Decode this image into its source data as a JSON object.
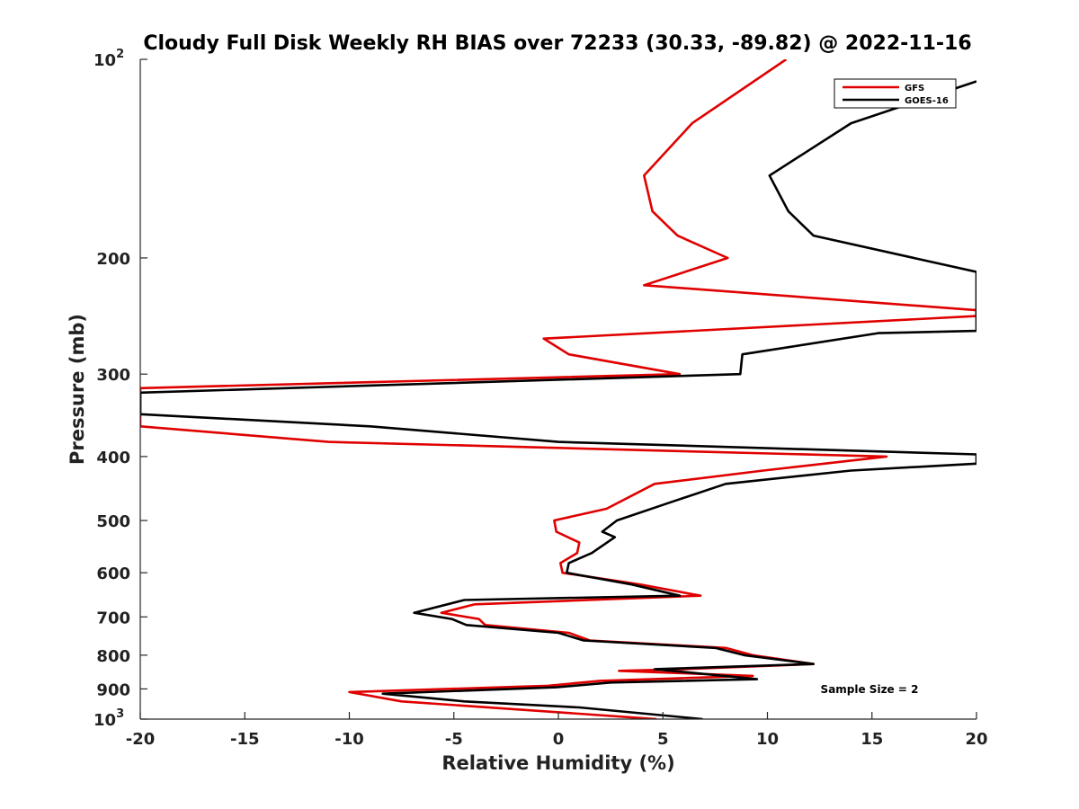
{
  "chart_data": {
    "type": "line",
    "title": "Cloudy Full Disk Weekly RH BIAS over 72233 (30.33, -89.82) @ 2022-11-16",
    "xlabel": "Relative Humidity (%)",
    "ylabel": "Pressure (mb)",
    "xlim": [
      -20,
      20
    ],
    "ylim": [
      100,
      1000
    ],
    "yscale": "log",
    "y_reversed": true,
    "x_ticks": [
      -20,
      -15,
      -10,
      -5,
      0,
      5,
      10,
      15,
      20
    ],
    "y_ticks": [
      {
        "value": 100,
        "label": "10",
        "exp": "2"
      },
      {
        "value": 200,
        "label": "200",
        "exp": ""
      },
      {
        "value": 300,
        "label": "300",
        "exp": ""
      },
      {
        "value": 400,
        "label": "400",
        "exp": ""
      },
      {
        "value": 500,
        "label": "500",
        "exp": ""
      },
      {
        "value": 600,
        "label": "600",
        "exp": ""
      },
      {
        "value": 700,
        "label": "700",
        "exp": ""
      },
      {
        "value": 800,
        "label": "800",
        "exp": ""
      },
      {
        "value": 900,
        "label": "900",
        "exp": ""
      },
      {
        "value": 1000,
        "label": "10",
        "exp": "3"
      }
    ],
    "legend_position": "top-right",
    "annotation": "Sample Size = 2",
    "series": [
      {
        "name": "GFS",
        "color": "#e00000",
        "points": [
          [
            10.9,
            100
          ],
          [
            6.4,
            125
          ],
          [
            4.1,
            150
          ],
          [
            4.5,
            170
          ],
          [
            5.7,
            185
          ],
          [
            8.1,
            200
          ],
          [
            4.1,
            220
          ],
          [
            20.5,
            240
          ],
          [
            20.5,
            245
          ],
          [
            -0.7,
            265
          ],
          [
            0.5,
            280
          ],
          [
            5.8,
            300
          ],
          [
            -20.5,
            315
          ],
          [
            -20.5,
            350
          ],
          [
            -20,
            360
          ],
          [
            -11,
            380
          ],
          [
            15.7,
            400
          ],
          [
            9.8,
            420
          ],
          [
            4.6,
            440
          ],
          [
            2.3,
            480
          ],
          [
            -0.2,
            500
          ],
          [
            -0.1,
            520
          ],
          [
            1.0,
            540
          ],
          [
            0.9,
            560
          ],
          [
            0.1,
            580
          ],
          [
            0.2,
            600
          ],
          [
            3.9,
            625
          ],
          [
            6.8,
            650
          ],
          [
            -4.0,
            670
          ],
          [
            -5.6,
            690
          ],
          [
            -3.8,
            705
          ],
          [
            -3.5,
            720
          ],
          [
            0.5,
            740
          ],
          [
            1.5,
            760
          ],
          [
            8.0,
            780
          ],
          [
            9.3,
            800
          ],
          [
            12.2,
            825
          ],
          [
            6.0,
            840
          ],
          [
            2.9,
            845
          ],
          [
            9.3,
            860
          ],
          [
            2.0,
            875
          ],
          [
            -0.5,
            890
          ],
          [
            -10.0,
            910
          ],
          [
            -7.5,
            940
          ],
          [
            4.7,
            1000
          ]
        ]
      },
      {
        "name": "GOES-16",
        "color": "#000000",
        "points": [
          [
            20.5,
            108
          ],
          [
            14.0,
            125
          ],
          [
            10.1,
            150
          ],
          [
            11.0,
            170
          ],
          [
            12.2,
            185
          ],
          [
            20.5,
            210
          ],
          [
            20.5,
            258
          ],
          [
            15.3,
            260
          ],
          [
            8.8,
            280
          ],
          [
            8.7,
            300
          ],
          [
            -20.5,
            320
          ],
          [
            -20.5,
            340
          ],
          [
            -20,
            345
          ],
          [
            -9,
            360
          ],
          [
            0,
            380
          ],
          [
            20.5,
            397
          ],
          [
            20.5,
            410
          ],
          [
            14.0,
            420
          ],
          [
            8.0,
            440
          ],
          [
            5.3,
            470
          ],
          [
            2.8,
            500
          ],
          [
            2.1,
            520
          ],
          [
            2.7,
            530
          ],
          [
            1.6,
            560
          ],
          [
            0.5,
            580
          ],
          [
            0.4,
            600
          ],
          [
            3.5,
            625
          ],
          [
            5.8,
            650
          ],
          [
            -4.5,
            660
          ],
          [
            -6.9,
            690
          ],
          [
            -5.1,
            705
          ],
          [
            -4.4,
            720
          ],
          [
            0.0,
            740
          ],
          [
            1.2,
            760
          ],
          [
            7.5,
            780
          ],
          [
            8.9,
            800
          ],
          [
            12.2,
            825
          ],
          [
            4.6,
            840
          ],
          [
            9.5,
            870
          ],
          [
            2.5,
            880
          ],
          [
            -0.1,
            895
          ],
          [
            -8.4,
            915
          ],
          [
            -4.5,
            940
          ],
          [
            1.0,
            960
          ],
          [
            6.9,
            1000
          ]
        ]
      }
    ]
  }
}
